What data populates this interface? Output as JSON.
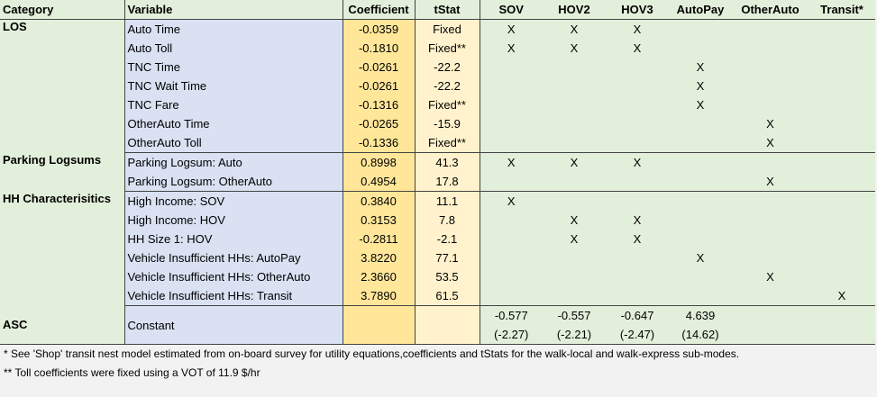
{
  "headers": {
    "category": "Category",
    "variable": "Variable",
    "coefficient": "Coefficient",
    "tstat": "tStat",
    "modes": [
      "SOV",
      "HOV2",
      "HOV3",
      "AutoPay",
      "OtherAuto",
      "Transit*"
    ]
  },
  "groups": [
    {
      "category": "LOS",
      "rows": [
        {
          "variable": "Auto Time",
          "coefficient": "-0.0359",
          "tstat": "Fixed",
          "marks": [
            "X",
            "X",
            "X",
            "",
            "",
            ""
          ]
        },
        {
          "variable": "Auto Toll",
          "coefficient": "-0.1810",
          "tstat": "Fixed**",
          "marks": [
            "X",
            "X",
            "X",
            "",
            "",
            ""
          ]
        },
        {
          "variable": "TNC Time",
          "coefficient": "-0.0261",
          "tstat": "-22.2",
          "marks": [
            "",
            "",
            "",
            "X",
            "",
            ""
          ]
        },
        {
          "variable": "TNC Wait Time",
          "coefficient": "-0.0261",
          "tstat": "-22.2",
          "marks": [
            "",
            "",
            "",
            "X",
            "",
            ""
          ]
        },
        {
          "variable": "TNC Fare",
          "coefficient": "-0.1316",
          "tstat": "Fixed**",
          "marks": [
            "",
            "",
            "",
            "X",
            "",
            ""
          ]
        },
        {
          "variable": "OtherAuto Time",
          "coefficient": "-0.0265",
          "tstat": "-15.9",
          "marks": [
            "",
            "",
            "",
            "",
            "X",
            ""
          ]
        },
        {
          "variable": "OtherAuto Toll",
          "coefficient": "-0.1336",
          "tstat": "Fixed**",
          "marks": [
            "",
            "",
            "",
            "",
            "X",
            ""
          ]
        }
      ]
    },
    {
      "category": "Parking Logsums",
      "rows": [
        {
          "variable": "Parking Logsum: Auto",
          "coefficient": "0.8998",
          "tstat": "41.3",
          "marks": [
            "X",
            "X",
            "X",
            "",
            "",
            ""
          ]
        },
        {
          "variable": "Parking Logsum: OtherAuto",
          "coefficient": "0.4954",
          "tstat": "17.8",
          "marks": [
            "",
            "",
            "",
            "",
            "X",
            ""
          ]
        }
      ]
    },
    {
      "category": "HH Characterisitics",
      "rows": [
        {
          "variable": "High Income: SOV",
          "coefficient": "0.3840",
          "tstat": "11.1",
          "marks": [
            "X",
            "",
            "",
            "",
            "",
            ""
          ]
        },
        {
          "variable": "High Income: HOV",
          "coefficient": "0.3153",
          "tstat": "7.8",
          "marks": [
            "",
            "X",
            "X",
            "",
            "",
            ""
          ]
        },
        {
          "variable": "HH Size 1: HOV",
          "coefficient": "-0.2811",
          "tstat": "-2.1",
          "marks": [
            "",
            "X",
            "X",
            "",
            "",
            ""
          ]
        },
        {
          "variable": "Vehicle Insufficient HHs: AutoPay",
          "coefficient": "3.8220",
          "tstat": "77.1",
          "marks": [
            "",
            "",
            "",
            "X",
            "",
            ""
          ]
        },
        {
          "variable": "Vehicle Insufficient HHs: OtherAuto",
          "coefficient": "2.3660",
          "tstat": "53.5",
          "marks": [
            "",
            "",
            "",
            "",
            "X",
            ""
          ]
        },
        {
          "variable": "Vehicle Insufficient HHs: Transit",
          "coefficient": "3.7890",
          "tstat": "61.5",
          "marks": [
            "",
            "",
            "",
            "",
            "",
            "X"
          ]
        }
      ]
    }
  ],
  "asc": {
    "category": "ASC",
    "variable": "Constant",
    "values": [
      {
        "coef": "-0.577",
        "tstat": "(-2.27)"
      },
      {
        "coef": "-0.557",
        "tstat": "(-2.21)"
      },
      {
        "coef": "-0.647",
        "tstat": "(-2.47)"
      },
      {
        "coef": "4.639",
        "tstat": "(14.62)"
      },
      {
        "coef": "",
        "tstat": ""
      },
      {
        "coef": "",
        "tstat": ""
      }
    ]
  },
  "notes": [
    "* See 'Shop' transit nest model estimated from on-board survey for utility equations,coefficients and tStats for the walk-local and walk-express sub-modes.",
    "** Toll coefficients were fixed using a VOT of 11.9 $/hr"
  ]
}
